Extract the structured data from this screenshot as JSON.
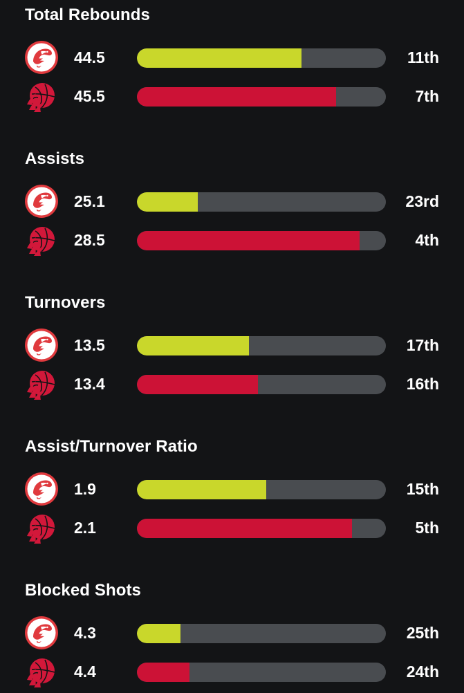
{
  "colors": {
    "background": "#131416",
    "track": "#494c50",
    "hawks_fill": "#c9d72b",
    "raptors_fill": "#cc1236"
  },
  "teams": {
    "hawks": {
      "icon": "hawks-logo-icon"
    },
    "raptors": {
      "icon": "raptors-logo-icon"
    }
  },
  "sections": [
    {
      "title": "Total Rebounds",
      "rows": [
        {
          "team": "hawks",
          "value": "44.5",
          "rank": "11th",
          "fill_fraction": 0.66
        },
        {
          "team": "raptors",
          "value": "45.5",
          "rank": "7th",
          "fill_fraction": 0.8
        }
      ]
    },
    {
      "title": "Assists",
      "rows": [
        {
          "team": "hawks",
          "value": "25.1",
          "rank": "23rd",
          "fill_fraction": 0.245
        },
        {
          "team": "raptors",
          "value": "28.5",
          "rank": "4th",
          "fill_fraction": 0.895
        }
      ]
    },
    {
      "title": "Turnovers",
      "rows": [
        {
          "team": "hawks",
          "value": "13.5",
          "rank": "17th",
          "fill_fraction": 0.45
        },
        {
          "team": "raptors",
          "value": "13.4",
          "rank": "16th",
          "fill_fraction": 0.485
        }
      ]
    },
    {
      "title": "Assist/Turnover Ratio",
      "rows": [
        {
          "team": "hawks",
          "value": "1.9",
          "rank": "15th",
          "fill_fraction": 0.52
        },
        {
          "team": "raptors",
          "value": "2.1",
          "rank": "5th",
          "fill_fraction": 0.865
        }
      ]
    },
    {
      "title": "Blocked Shots",
      "rows": [
        {
          "team": "hawks",
          "value": "4.3",
          "rank": "25th",
          "fill_fraction": 0.175
        },
        {
          "team": "raptors",
          "value": "4.4",
          "rank": "24th",
          "fill_fraction": 0.21
        }
      ]
    }
  ]
}
